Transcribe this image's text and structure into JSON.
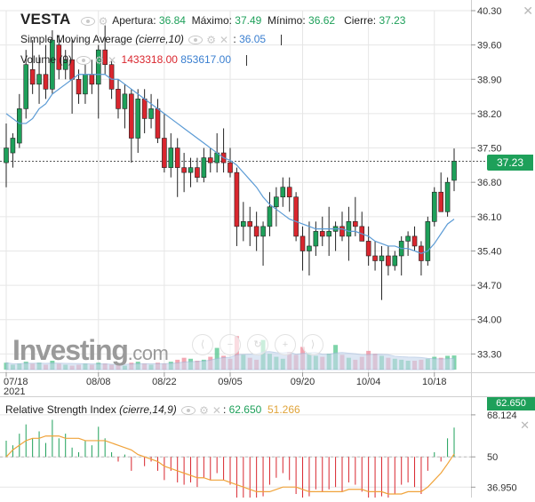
{
  "header": {
    "symbol": "VESTA",
    "open_label": "Apertura:",
    "open_value": "36.84",
    "high_label": "Máximo:",
    "high_value": "37.49",
    "low_label": "Mínimo:",
    "low_value": "36.62",
    "close_label": "Cierre:",
    "close_value": "37.23",
    "sma_label": "Simple Moving Average",
    "sma_params": "(cierre,10)",
    "sma_value": "36.05",
    "volume_label": "Volume (9)",
    "volume_value_1": "1433318.00",
    "volume_value_2": "853617.00",
    "rsi_label": "Relative Strength Index",
    "rsi_params": "(cierre,14,9)",
    "rsi_value": "62.650",
    "rsi_signal_value": "51.266",
    "rsi_partial_label": "68.124",
    "last_price_tag": "37.23",
    "rsi_tag": "62.650"
  },
  "colors": {
    "up": "#1ea05a",
    "down": "#d9262e",
    "sma": "#5b9bd5",
    "rsi_signal": "#f0a33a",
    "grid": "#e6e6e6",
    "price_tag": "#1ea05a"
  },
  "icons": [
    "eye-icon",
    "gear-icon",
    "close-icon",
    "nav-first-icon",
    "zoom-out-icon",
    "reset-icon",
    "zoom-in-icon",
    "nav-last-icon"
  ],
  "logo": {
    "main": "Investing",
    "suffix": ".com"
  },
  "chart_data": [
    {
      "type": "candlestick",
      "title": "VESTA",
      "y_ticks": [
        "40.30",
        "39.60",
        "38.90",
        "38.20",
        "37.50",
        "36.80",
        "36.10",
        "35.40",
        "34.70",
        "34.00",
        "33.30"
      ],
      "ylim": [
        33.18,
        40.3
      ],
      "x_ticks": [
        "07/18",
        "08/08",
        "08/22",
        "09/05",
        "09/20",
        "10/04",
        "10/18"
      ],
      "x_tick_sublabel": "2021",
      "x_tick_index": [
        0,
        14,
        24,
        34,
        45,
        55,
        65
      ],
      "last_price": 37.23,
      "ohlc": [
        [
          37.2,
          38.0,
          36.7,
          37.5
        ],
        [
          37.4,
          37.8,
          37.1,
          37.7
        ],
        [
          37.6,
          38.6,
          37.5,
          38.3
        ],
        [
          38.3,
          39.5,
          38.1,
          39.2
        ],
        [
          39.1,
          39.7,
          38.6,
          38.8
        ],
        [
          38.8,
          39.4,
          38.4,
          39.0
        ],
        [
          39.0,
          39.6,
          38.5,
          38.7
        ],
        [
          38.7,
          39.9,
          38.6,
          39.7
        ],
        [
          39.6,
          39.8,
          38.9,
          39.1
        ],
        [
          39.1,
          39.5,
          38.9,
          39.3
        ],
        [
          39.3,
          39.7,
          38.2,
          38.9
        ],
        [
          38.9,
          39.1,
          38.4,
          38.6
        ],
        [
          38.6,
          39.2,
          38.4,
          39.0
        ],
        [
          39.0,
          39.3,
          38.6,
          38.8
        ],
        [
          38.8,
          39.6,
          38.1,
          39.5
        ],
        [
          39.5,
          40.0,
          39.0,
          39.2
        ],
        [
          39.2,
          39.3,
          38.5,
          38.7
        ],
        [
          38.7,
          38.9,
          38.1,
          38.3
        ],
        [
          38.3,
          38.8,
          37.9,
          38.6
        ],
        [
          38.6,
          38.7,
          37.2,
          37.7
        ],
        [
          37.7,
          38.7,
          37.4,
          38.5
        ],
        [
          38.5,
          38.7,
          37.8,
          38.1
        ],
        [
          38.1,
          38.6,
          37.9,
          38.3
        ],
        [
          38.3,
          38.5,
          37.6,
          37.7
        ],
        [
          37.7,
          38.2,
          37.0,
          37.1
        ],
        [
          37.1,
          37.8,
          36.9,
          37.5
        ],
        [
          37.5,
          37.7,
          36.5,
          37.1
        ],
        [
          37.1,
          37.4,
          36.6,
          37.0
        ],
        [
          37.0,
          37.3,
          36.7,
          37.1
        ],
        [
          37.1,
          37.3,
          36.8,
          36.9
        ],
        [
          36.9,
          37.5,
          36.8,
          37.3
        ],
        [
          37.3,
          37.5,
          37.0,
          37.2
        ],
        [
          37.2,
          37.8,
          37.0,
          37.4
        ],
        [
          37.4,
          37.9,
          37.0,
          37.2
        ],
        [
          37.2,
          37.5,
          36.9,
          37.0
        ],
        [
          37.0,
          37.1,
          35.5,
          35.9
        ],
        [
          35.9,
          36.4,
          35.6,
          36.0
        ],
        [
          36.0,
          36.3,
          35.5,
          35.9
        ],
        [
          35.9,
          36.2,
          35.4,
          35.7
        ],
        [
          35.7,
          36.0,
          35.1,
          35.9
        ],
        [
          35.9,
          36.6,
          35.7,
          36.3
        ],
        [
          36.3,
          36.7,
          35.9,
          36.5
        ],
        [
          36.5,
          36.9,
          36.3,
          36.7
        ],
        [
          36.7,
          36.9,
          36.2,
          36.5
        ],
        [
          36.5,
          36.6,
          35.6,
          35.7
        ],
        [
          35.7,
          35.9,
          35.0,
          35.4
        ],
        [
          35.4,
          36.0,
          34.9,
          35.5
        ],
        [
          35.5,
          36.0,
          35.3,
          35.8
        ],
        [
          35.8,
          36.1,
          35.5,
          35.7
        ],
        [
          35.7,
          36.3,
          35.3,
          35.8
        ],
        [
          35.8,
          36.0,
          35.4,
          35.9
        ],
        [
          35.9,
          36.2,
          35.6,
          35.7
        ],
        [
          35.7,
          36.3,
          35.2,
          36.0
        ],
        [
          36.0,
          36.5,
          35.7,
          35.9
        ],
        [
          35.9,
          36.2,
          35.6,
          35.6
        ],
        [
          35.6,
          35.9,
          35.1,
          35.3
        ],
        [
          35.3,
          35.6,
          35.0,
          35.2
        ],
        [
          35.2,
          35.5,
          34.4,
          35.3
        ],
        [
          35.3,
          35.5,
          34.9,
          35.1
        ],
        [
          35.1,
          35.4,
          35.0,
          35.3
        ],
        [
          35.3,
          35.7,
          34.9,
          35.6
        ],
        [
          35.6,
          35.8,
          35.3,
          35.7
        ],
        [
          35.7,
          35.9,
          35.4,
          35.5
        ],
        [
          35.5,
          35.6,
          34.9,
          35.2
        ],
        [
          35.2,
          36.1,
          35.1,
          36.0
        ],
        [
          36.0,
          36.7,
          35.9,
          36.6
        ],
        [
          36.6,
          37.0,
          36.2,
          36.2
        ],
        [
          36.2,
          36.9,
          36.1,
          36.8
        ],
        [
          36.84,
          37.49,
          36.62,
          37.23
        ]
      ],
      "sma": [
        38.2,
        38.1,
        38.0,
        38.0,
        38.1,
        38.3,
        38.4,
        38.6,
        38.7,
        38.8,
        38.9,
        39.0,
        39.0,
        39.0,
        39.0,
        39.0,
        38.9,
        38.9,
        38.8,
        38.7,
        38.6,
        38.5,
        38.4,
        38.3,
        38.2,
        38.1,
        38.0,
        37.9,
        37.8,
        37.7,
        37.6,
        37.5,
        37.4,
        37.3,
        37.25,
        37.15,
        37.0,
        36.85,
        36.7,
        36.5,
        36.35,
        36.25,
        36.15,
        36.05,
        36.0,
        35.95,
        35.9,
        35.85,
        35.85,
        35.85,
        35.85,
        35.85,
        35.8,
        35.8,
        35.75,
        35.7,
        35.6,
        35.55,
        35.5,
        35.5,
        35.45,
        35.45,
        35.4,
        35.35,
        35.4,
        35.55,
        35.75,
        35.95,
        36.05
      ],
      "volume": [
        0.7,
        0.5,
        0.6,
        0.8,
        0.6,
        0.7,
        0.5,
        0.9,
        0.6,
        0.5,
        0.4,
        0.5,
        0.6,
        0.5,
        0.7,
        0.6,
        0.5,
        0.6,
        0.4,
        0.7,
        0.8,
        0.6,
        0.5,
        0.7,
        0.6,
        0.8,
        1.0,
        1.2,
        1.1,
        0.9,
        1.0,
        1.3,
        2.2,
        1.4,
        1.1,
        3.4,
        1.5,
        1.2,
        1.0,
        3.0,
        1.6,
        1.3,
        1.1,
        1.8,
        1.5,
        2.3,
        1.7,
        1.4,
        1.3,
        1.6,
        2.5,
        1.5,
        1.2,
        1.0,
        1.3,
        1.9,
        1.6,
        1.4,
        1.2,
        1.1,
        1.0,
        0.9,
        0.9,
        1.0,
        1.1,
        1.3,
        1.2,
        1.4,
        1.433318
      ],
      "volume_ma": [
        0.853617
      ]
    },
    {
      "type": "histogram",
      "title": "Relative Strength Index",
      "y_ticks": [
        "68.124",
        "50",
        "36.950"
      ],
      "rsi": [
        57,
        55,
        60,
        64,
        58,
        61,
        56,
        66,
        58,
        60,
        54,
        52,
        57,
        55,
        63,
        58,
        52,
        48,
        51,
        44,
        50,
        46,
        48,
        44,
        40,
        44,
        39,
        38,
        39,
        37,
        41,
        40,
        43,
        40,
        38,
        30,
        32,
        31,
        30,
        33,
        38,
        41,
        43,
        40,
        34,
        31,
        33,
        36,
        35,
        36,
        37,
        35,
        39,
        38,
        35,
        32,
        31,
        33,
        31,
        34,
        38,
        39,
        37,
        34,
        44,
        52,
        48,
        58,
        62.65
      ],
      "rsi_signal": [
        50,
        53,
        55,
        57,
        58,
        58,
        59,
        59,
        59,
        58,
        58,
        58,
        57,
        57,
        57,
        57,
        56,
        55,
        54,
        53,
        51,
        50,
        49,
        48,
        46,
        45,
        44,
        43,
        42,
        41,
        41,
        40,
        40,
        40,
        39,
        38,
        37,
        36,
        35,
        35,
        35,
        36,
        37,
        37,
        37,
        36,
        35,
        35,
        35,
        35,
        35,
        35,
        36,
        36,
        36,
        35,
        35,
        35,
        34,
        34,
        34,
        35,
        35,
        35,
        37,
        40,
        43,
        47,
        51.266
      ]
    }
  ]
}
